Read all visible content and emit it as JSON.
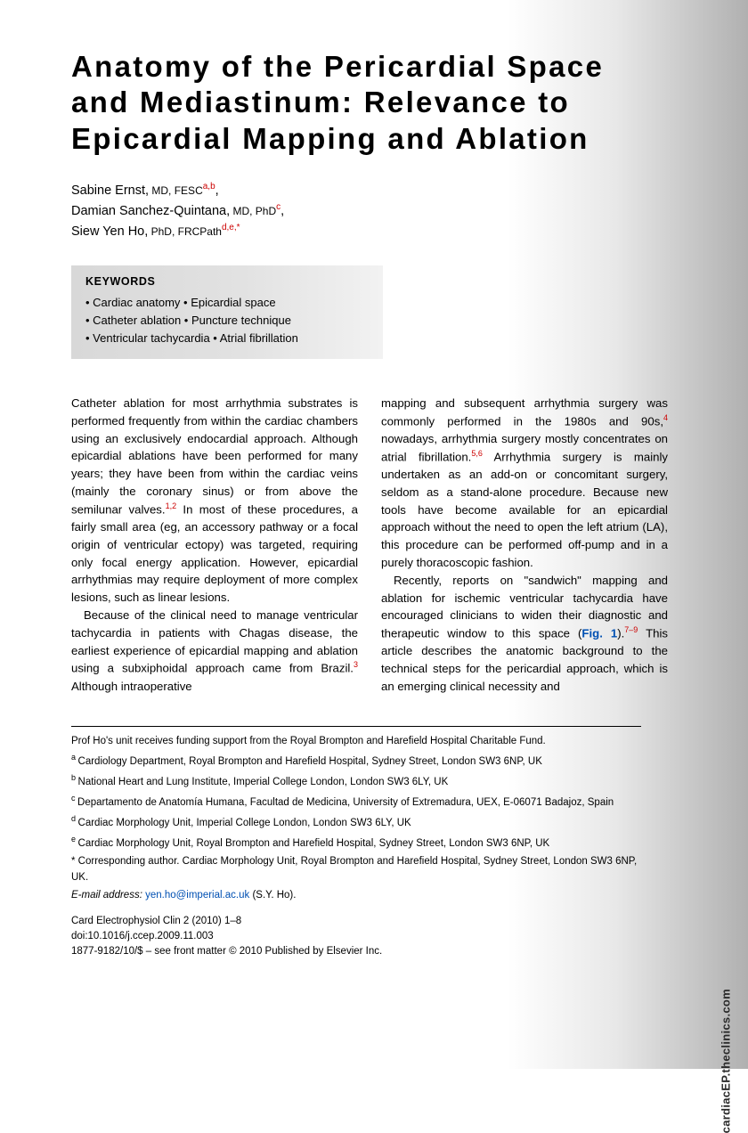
{
  "title": "Anatomy of the Pericardial Space and Mediastinum: Relevance to Epicardial Mapping and Ablation",
  "authors": {
    "a1_name": "Sabine Ernst,",
    "a1_cred": " MD, FESC",
    "a1_aff": "a,b",
    "a2_name": "Damian Sanchez-Quintana,",
    "a2_cred": " MD, PhD",
    "a2_aff": "c",
    "a3_name": "Siew Yen Ho,",
    "a3_cred": " PhD, FRCPath",
    "a3_aff": "d,e,*"
  },
  "keywords": {
    "label": "KEYWORDS",
    "l1": "• Cardiac anatomy • Epicardial space",
    "l2": "• Catheter ablation • Puncture technique",
    "l3": "• Ventricular tachycardia • Atrial fibrillation"
  },
  "body": {
    "p1a": "Catheter ablation for most arrhythmia substrates is performed frequently from within the cardiac chambers using an exclusively endocardial approach. Although epicardial ablations have been performed for many years; they have been from within the cardiac veins (mainly the coronary sinus) or from above the semilunar valves.",
    "p1r1": "1,2",
    "p1b": " In most of these procedures, a fairly small area (eg, an accessory pathway or a focal origin of ventricular ectopy) was targeted, requiring only focal energy application. However, epicardial arrhythmias may require deployment of more complex lesions, such as linear lesions.",
    "p2a": "Because of the clinical need to manage ventricular tachycardia in patients with Chagas disease, the earliest experience of epicardial mapping and ablation using a subxiphoidal approach came from Brazil.",
    "p2r1": "3",
    "p2b": " Although intraoperative",
    "p3a": "mapping and subsequent arrhythmia surgery was commonly performed in the 1980s and 90s,",
    "p3r1": "4",
    "p3b": " nowadays, arrhythmia surgery mostly concentrates on atrial fibrillation.",
    "p3r2": "5,6",
    "p3c": " Arrhythmia surgery is mainly undertaken as an add-on or concomitant surgery, seldom as a stand-alone procedure. Because new tools have become available for an epicardial approach without the need to open the left atrium (LA), this procedure can be performed off-pump and in a purely thoracoscopic fashion.",
    "p4a": "Recently, reports on \"sandwich\" mapping and ablation for ischemic ventricular tachycardia have encouraged clinicians to widen their diagnostic and therapeutic window to this space (",
    "p4fig": "Fig. 1",
    "p4b": ").",
    "p4r1": "7–9",
    "p4c": " This article describes the anatomic background to the technical steps for the pericardial approach, which is an emerging clinical necessity and"
  },
  "footer": {
    "funding": "Prof Ho's unit receives funding support from the Royal Brompton and Harefield Hospital Charitable Fund.",
    "a": "Cardiology Department, Royal Brompton and Harefield Hospital, Sydney Street, London SW3 6NP, UK",
    "b": "National Heart and Lung Institute, Imperial College London, London SW3 6LY, UK",
    "c": "Departamento de Anatomía Humana, Facultad de Medicina, University of Extremadura, UEX, E-06071 Badajoz, Spain",
    "d": "Cardiac Morphology Unit, Imperial College London, London SW3 6LY, UK",
    "e": "Cardiac Morphology Unit, Royal Brompton and Harefield Hospital, Sydney Street, London SW3 6NP, UK",
    "corr": "* Corresponding author. Cardiac Morphology Unit, Royal Brompton and Harefield Hospital, Sydney Street, London SW3 6NP, UK.",
    "email_label": "E-mail address:",
    "email": "yen.ho@imperial.ac.uk",
    "email_who": " (S.Y. Ho).",
    "cite1": "Card Electrophysiol Clin 2 (2010) 1–8",
    "cite2": "doi:10.1016/j.ccep.2009.11.003",
    "cite3": "1877-9182/10/$ – see front matter © 2010 Published by Elsevier Inc."
  },
  "side_url": "cardiacEP.theclinics.com"
}
